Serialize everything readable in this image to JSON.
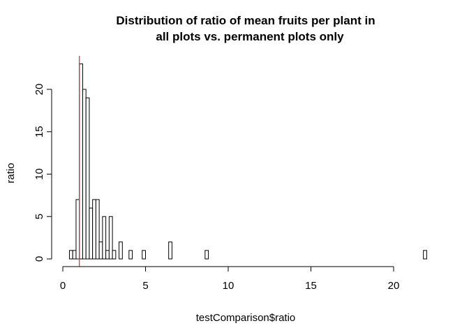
{
  "chart_data": {
    "type": "bar",
    "title_lines": [
      "Distribution of ratio of mean fruits per plant in",
      "all plots vs. permanent plots only"
    ],
    "xlabel": "testComparison$ratio",
    "ylabel": "ratio",
    "xlim": [
      0,
      22
    ],
    "ylim": [
      0,
      23
    ],
    "x_ticks": [
      0,
      5,
      10,
      15,
      20
    ],
    "y_ticks": [
      0,
      5,
      10,
      15,
      20
    ],
    "bin_width": 0.2,
    "x_start": 0.4,
    "x_end": 22.0,
    "nonzero_bins": [
      {
        "x0": 0.4,
        "count": 1
      },
      {
        "x0": 0.6,
        "count": 1
      },
      {
        "x0": 0.8,
        "count": 7
      },
      {
        "x0": 1.0,
        "count": 23
      },
      {
        "x0": 1.2,
        "count": 20
      },
      {
        "x0": 1.4,
        "count": 19
      },
      {
        "x0": 1.6,
        "count": 6
      },
      {
        "x0": 1.8,
        "count": 7
      },
      {
        "x0": 2.0,
        "count": 7
      },
      {
        "x0": 2.2,
        "count": 2
      },
      {
        "x0": 2.4,
        "count": 5
      },
      {
        "x0": 2.6,
        "count": 1
      },
      {
        "x0": 2.8,
        "count": 5
      },
      {
        "x0": 3.0,
        "count": 1
      },
      {
        "x0": 3.4,
        "count": 2
      },
      {
        "x0": 4.0,
        "count": 1
      },
      {
        "x0": 4.8,
        "count": 1
      },
      {
        "x0": 6.4,
        "count": 2
      },
      {
        "x0": 8.6,
        "count": 1
      },
      {
        "x0": 21.8,
        "count": 1
      }
    ],
    "reference_line": {
      "x": 1.0,
      "color": "#cc3333"
    },
    "grid": false,
    "bar_fill": "#ffffff",
    "bar_stroke": "#000000"
  }
}
